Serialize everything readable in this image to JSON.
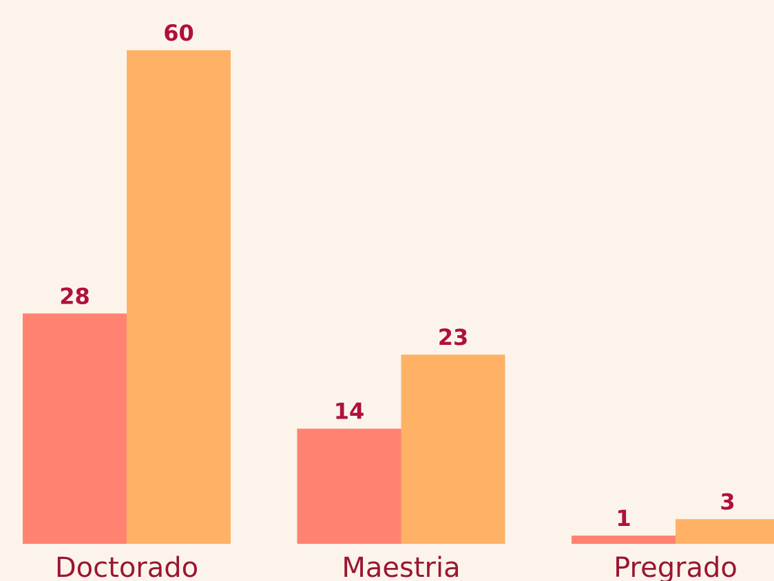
{
  "chart_data": {
    "type": "bar",
    "categories": [
      "Doctorado",
      "Maestria",
      "Pregrado"
    ],
    "series": [
      {
        "color": "#ff8370",
        "values": [
          28,
          14,
          1
        ]
      },
      {
        "color": "#ffb266",
        "values": [
          60,
          23,
          3
        ]
      }
    ]
  }
}
